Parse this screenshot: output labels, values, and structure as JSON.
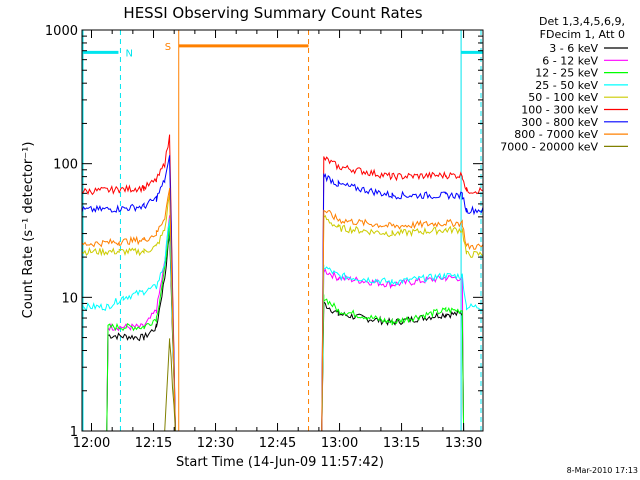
{
  "chart_data": {
    "type": "line",
    "title": "HESSI Observing Summary Count Rates",
    "xlabel": "Start Time (14-Jun-09 11:57:42)",
    "ylabel": "Count Rate (s⁻¹ detector⁻¹)",
    "yscale": "log",
    "ylim": [
      1,
      1000
    ],
    "xlim_minutes": [
      0,
      97
    ],
    "x_ticks": [
      "12:00",
      "12:15",
      "12:30",
      "12:45",
      "13:00",
      "13:15",
      "13:30"
    ],
    "y_ticks": [
      "1",
      "10",
      "100",
      "1000"
    ],
    "legend_header": [
      "Det 1,3,4,5,6,9,",
      "FDecim 1, Att 0"
    ],
    "legend_position": "right",
    "timestamp": "8-Mar-2010 17:13",
    "markers": [
      {
        "label": "N",
        "color": "#00e5ee"
      },
      {
        "label": "S",
        "color": "#ff8000"
      }
    ],
    "series": [
      {
        "name": "3 - 6 keV",
        "color": "#000000",
        "values": [
          [
            0,
            1
          ],
          [
            6,
            1
          ],
          [
            6.3,
            5.2
          ],
          [
            15,
            5
          ],
          [
            18,
            6
          ],
          [
            20,
            14
          ],
          [
            21.2,
            30
          ],
          [
            22.6,
            1
          ],
          [
            58,
            1
          ],
          [
            58.5,
            9
          ],
          [
            62,
            7.5
          ],
          [
            75,
            6.5
          ],
          [
            88,
            7.5
          ],
          [
            92,
            7.5
          ],
          [
            92.3,
            1
          ],
          [
            97,
            1
          ]
        ]
      },
      {
        "name": "6 - 12 keV",
        "color": "#ff00ff",
        "values": [
          [
            0,
            1
          ],
          [
            6,
            1
          ],
          [
            6.3,
            6
          ],
          [
            15,
            6
          ],
          [
            18,
            8
          ],
          [
            20,
            18
          ],
          [
            21.2,
            40
          ],
          [
            22.6,
            1
          ],
          [
            58,
            1
          ],
          [
            58.5,
            16
          ],
          [
            62,
            14
          ],
          [
            75,
            12.5
          ],
          [
            88,
            14
          ],
          [
            92,
            14
          ],
          [
            92.3,
            1
          ],
          [
            97,
            1
          ]
        ]
      },
      {
        "name": "12 - 25 keV",
        "color": "#00ff00",
        "values": [
          [
            0,
            1
          ],
          [
            6,
            1
          ],
          [
            6.3,
            6
          ],
          [
            15,
            6
          ],
          [
            18,
            7
          ],
          [
            20,
            16
          ],
          [
            21.2,
            36
          ],
          [
            22.6,
            1
          ],
          [
            58,
            1
          ],
          [
            58.5,
            10
          ],
          [
            62,
            8
          ],
          [
            75,
            6.5
          ],
          [
            88,
            8
          ],
          [
            92,
            8
          ],
          [
            92.3,
            1
          ],
          [
            97,
            1
          ]
        ]
      },
      {
        "name": "25 - 50 keV",
        "color": "#00ffff",
        "values": [
          [
            0,
            8.5
          ],
          [
            6,
            8.5
          ],
          [
            10,
            10
          ],
          [
            15,
            11
          ],
          [
            18,
            12
          ],
          [
            20,
            18
          ],
          [
            21.2,
            40
          ],
          [
            22.6,
            1
          ],
          [
            58,
            1
          ],
          [
            58.5,
            17
          ],
          [
            62,
            14.5
          ],
          [
            75,
            13
          ],
          [
            88,
            14.5
          ],
          [
            92,
            14.5
          ],
          [
            93,
            8.5
          ],
          [
            97,
            8.5
          ]
        ]
      },
      {
        "name": "50 - 100 keV",
        "color": "#cccc00",
        "values": [
          [
            0,
            22
          ],
          [
            9,
            22
          ],
          [
            15,
            22
          ],
          [
            18,
            24
          ],
          [
            20,
            32
          ],
          [
            21.2,
            60
          ],
          [
            22.6,
            1
          ],
          [
            58,
            1
          ],
          [
            58.5,
            40
          ],
          [
            62,
            33
          ],
          [
            75,
            30
          ],
          [
            88,
            32
          ],
          [
            92,
            32
          ],
          [
            93,
            21
          ],
          [
            97,
            21
          ]
        ]
      },
      {
        "name": "100 - 300 keV",
        "color": "#ff0000",
        "values": [
          [
            0,
            62
          ],
          [
            9,
            64
          ],
          [
            15,
            66
          ],
          [
            18,
            75
          ],
          [
            20,
            100
          ],
          [
            21.2,
            160
          ],
          [
            22.6,
            1
          ],
          [
            58,
            1
          ],
          [
            58.5,
            110
          ],
          [
            62,
            95
          ],
          [
            75,
            80
          ],
          [
            88,
            82
          ],
          [
            92,
            82
          ],
          [
            93,
            63
          ],
          [
            97,
            63
          ]
        ]
      },
      {
        "name": "300 - 800 keV",
        "color": "#0000ff",
        "values": [
          [
            0,
            45
          ],
          [
            9,
            46
          ],
          [
            15,
            48
          ],
          [
            18,
            55
          ],
          [
            20,
            75
          ],
          [
            21.2,
            110
          ],
          [
            22.6,
            1
          ],
          [
            58,
            1
          ],
          [
            58.5,
            82
          ],
          [
            62,
            70
          ],
          [
            75,
            58
          ],
          [
            88,
            58
          ],
          [
            92,
            58
          ],
          [
            93,
            45
          ],
          [
            97,
            45
          ]
        ]
      },
      {
        "name": "800 - 7000 keV",
        "color": "#ff8000",
        "values": [
          [
            0,
            25
          ],
          [
            9,
            26
          ],
          [
            15,
            27
          ],
          [
            18,
            30
          ],
          [
            20,
            40
          ],
          [
            21.2,
            65
          ],
          [
            22.6,
            1
          ],
          [
            58,
            1
          ],
          [
            58.5,
            45
          ],
          [
            62,
            38
          ],
          [
            75,
            34
          ],
          [
            88,
            36
          ],
          [
            92,
            36
          ],
          [
            93,
            24
          ],
          [
            97,
            24
          ]
        ]
      },
      {
        "name": "7000 - 20000 keV",
        "color": "#808000",
        "values": [
          [
            0,
            1
          ],
          [
            20,
            1
          ],
          [
            21.2,
            5
          ],
          [
            22.6,
            1
          ],
          [
            97,
            1
          ]
        ]
      }
    ]
  }
}
